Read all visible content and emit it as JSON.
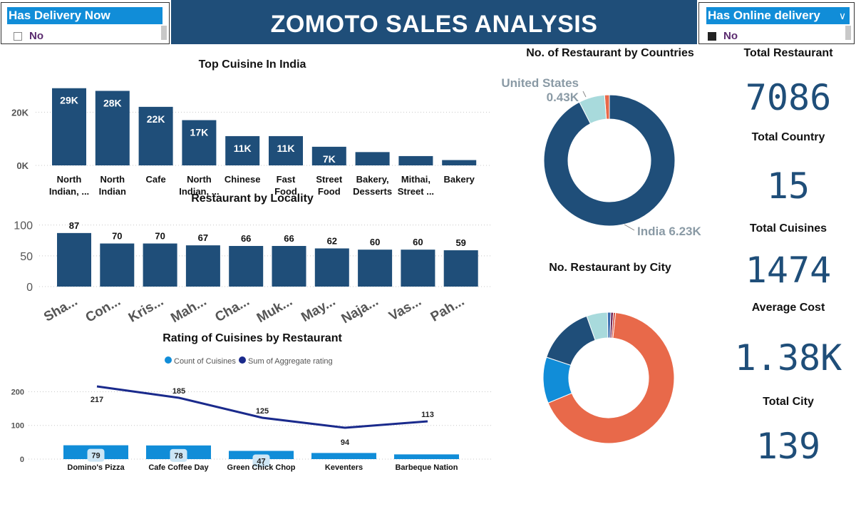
{
  "page_title": "ZOMOTO SALES ANALYSIS",
  "slicers": {
    "delivery_now": {
      "title": "Has Delivery Now",
      "value": "No",
      "checked": false
    },
    "online_delivery": {
      "title": "Has Online delivery",
      "value": "No",
      "checked": true
    }
  },
  "kpis": [
    {
      "label": "Total Restaurant",
      "value": "7086"
    },
    {
      "label": "Total Country",
      "value": "15"
    },
    {
      "label": "Total Cuisines",
      "value": "1474"
    },
    {
      "label": "Average Cost",
      "value": "1.38K"
    },
    {
      "label": "Total City",
      "value": "139"
    }
  ],
  "colors": {
    "primary": "#1f4e79",
    "bar_light": "#118dd8",
    "line": "#1a2a8c",
    "orange": "#e8694a",
    "teal": "#a8dadc",
    "kpi": "#1f4e79",
    "banner": "#1f4e79"
  },
  "chart_data": [
    {
      "id": "top-cuisine",
      "type": "bar",
      "title": "Top Cuisine In India",
      "categories": [
        [
          "North",
          "Indian, ..."
        ],
        [
          "North",
          "Indian"
        ],
        [
          "Cafe"
        ],
        [
          "North",
          "Indian, ..."
        ],
        [
          "Chinese"
        ],
        [
          "Fast",
          "Food"
        ],
        [
          "Street",
          "Food"
        ],
        [
          "Bakery,",
          "Desserts"
        ],
        [
          "Mithai,",
          "Street ..."
        ],
        [
          "Bakery"
        ]
      ],
      "values": [
        29000,
        28000,
        22000,
        17000,
        11000,
        11000,
        7000,
        5000,
        3500,
        2000
      ],
      "data_labels": [
        "29K",
        "28K",
        "22K",
        "17K",
        "11K",
        "11K",
        "7K",
        "",
        "",
        ""
      ],
      "y_ticks": [
        0,
        20000
      ],
      "y_tick_labels": [
        "0K",
        "20K"
      ],
      "ylim": [
        0,
        30000
      ]
    },
    {
      "id": "restaurant-by-locality",
      "type": "bar",
      "title": "Restaurant by Locality",
      "categories": [
        "Sha...",
        "Con...",
        "Kris...",
        "Mah...",
        "Cha...",
        "Muk...",
        "May...",
        "Naja...",
        "Vas...",
        "Pah..."
      ],
      "values": [
        87,
        70,
        70,
        67,
        66,
        66,
        62,
        60,
        60,
        59
      ],
      "y_ticks": [
        0,
        50,
        100
      ],
      "ylim": [
        0,
        110
      ]
    },
    {
      "id": "rating-of-cuisines",
      "type": "bar+line",
      "title": "Rating of Cuisines by Restaurant",
      "categories": [
        "Domino's Pizza",
        "Cafe Coffee Day",
        "Green Chick Chop",
        "Keventers",
        "Barbeque Nation"
      ],
      "series": [
        {
          "name": "Count of Cuisines",
          "type": "bar",
          "values": [
            79,
            78,
            47,
            35,
            27
          ],
          "data_labels": [
            "79",
            "78",
            "47",
            "",
            ""
          ]
        },
        {
          "name": "Sum of Aggregate rating",
          "type": "line",
          "values": [
            217,
            185,
            125,
            94,
            113
          ]
        }
      ],
      "y_ticks": [
        0,
        100,
        200
      ],
      "ylim": [
        0,
        220
      ]
    },
    {
      "id": "restaurant-by-countries",
      "type": "pie",
      "title": "No. of Restaurant by Countries",
      "slices": [
        {
          "label": "India",
          "value": 6.23,
          "display": "India 6.23K"
        },
        {
          "label": "United States",
          "value": 0.43,
          "display": "0.43K"
        },
        {
          "label": "Other",
          "value": 0.08,
          "display": ""
        }
      ],
      "outside_labels": [
        "United States"
      ]
    },
    {
      "id": "restaurant-by-city",
      "type": "pie",
      "title": "No. Restaurant by City",
      "slices": [
        {
          "label": "",
          "value": 65
        },
        {
          "label": "",
          "value": 11
        },
        {
          "label": "",
          "value": 14
        },
        {
          "label": "",
          "value": 5
        },
        {
          "label": "",
          "value": 0.8
        },
        {
          "label": "",
          "value": 0.6
        },
        {
          "label": "",
          "value": 0.5
        }
      ]
    }
  ]
}
